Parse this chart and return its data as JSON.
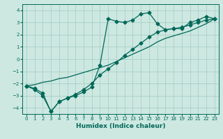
{
  "xlabel": "Humidex (Indice chaleur)",
  "bg_color": "#cce8e0",
  "grid_color": "#a8cfc8",
  "line_color": "#006858",
  "xlim": [
    -0.5,
    23.5
  ],
  "ylim": [
    -4.5,
    4.5
  ],
  "xticks": [
    0,
    1,
    2,
    3,
    4,
    5,
    6,
    7,
    8,
    9,
    10,
    11,
    12,
    13,
    14,
    15,
    16,
    17,
    18,
    19,
    20,
    21,
    22,
    23
  ],
  "yticks": [
    -4,
    -3,
    -2,
    -1,
    0,
    1,
    2,
    3,
    4
  ],
  "line1_x": [
    0,
    1,
    2,
    3,
    4,
    5,
    6,
    7,
    8,
    9,
    10,
    11,
    12,
    13,
    14,
    15,
    16,
    17,
    18,
    19,
    20,
    21,
    22,
    23
  ],
  "line1_y": [
    -2.2,
    -2.5,
    -3.0,
    -4.3,
    -3.5,
    -3.2,
    -3.0,
    -2.7,
    -2.3,
    -0.5,
    3.3,
    3.1,
    3.0,
    3.2,
    3.7,
    3.8,
    2.9,
    2.4,
    2.5,
    2.5,
    3.0,
    3.2,
    3.5,
    3.3
  ],
  "line2_x": [
    0,
    1,
    2,
    3,
    4,
    5,
    6,
    7,
    8,
    9,
    10,
    11,
    12,
    13,
    14,
    15,
    16,
    17,
    18,
    19,
    20,
    21,
    22,
    23
  ],
  "line2_y": [
    -2.2,
    -2.4,
    -2.8,
    -4.3,
    -3.5,
    -3.2,
    -2.9,
    -2.5,
    -2.0,
    -1.3,
    -0.8,
    -0.3,
    0.3,
    0.8,
    1.3,
    1.8,
    2.2,
    2.4,
    2.5,
    2.6,
    2.8,
    3.0,
    3.2,
    3.3
  ],
  "line3_x": [
    0,
    1,
    2,
    3,
    4,
    5,
    6,
    7,
    8,
    9,
    10,
    11,
    12,
    13,
    14,
    15,
    16,
    17,
    18,
    19,
    20,
    21,
    22,
    23
  ],
  "line3_y": [
    -2.2,
    -2.1,
    -1.9,
    -1.8,
    -1.6,
    -1.5,
    -1.3,
    -1.1,
    -0.9,
    -0.7,
    -0.5,
    -0.2,
    0.1,
    0.4,
    0.7,
    1.0,
    1.4,
    1.7,
    1.9,
    2.1,
    2.3,
    2.6,
    2.9,
    3.3
  ]
}
